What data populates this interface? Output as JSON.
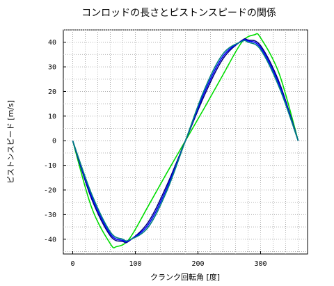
{
  "chart_data": {
    "type": "line",
    "title": "コンロッドの長さとピストンスピードの関係",
    "xlabel": "クランク回転角 [度]",
    "ylabel": "ピストンスピード [m/s]",
    "xlim": [
      -15,
      375
    ],
    "ylim": [
      -46,
      45
    ],
    "x_ticks": [
      0,
      100,
      200,
      300
    ],
    "y_ticks": [
      -40,
      -30,
      -20,
      -10,
      0,
      10,
      20,
      30,
      40
    ],
    "grid": true,
    "grid_style": "dotted",
    "legend": false,
    "series": [
      {
        "color": "#00dd00",
        "x": [
          0,
          30,
          60,
          70,
          90,
          120,
          150,
          180,
          210,
          240,
          270,
          290,
          300,
          330,
          360
        ],
        "y": [
          0,
          -27.0,
          -41.8,
          -43.0,
          -40.0,
          -26.8,
          -13.2,
          0,
          13.2,
          26.8,
          40.0,
          43.0,
          41.8,
          27.0,
          0
        ]
      },
      {
        "color": "#000080",
        "x": [
          0,
          30,
          60,
          80,
          90,
          120,
          150,
          180,
          210,
          240,
          270,
          280,
          300,
          330,
          360
        ],
        "y": [
          0,
          -23.5,
          -38.6,
          -40.9,
          -40.7,
          -33.3,
          -18.3,
          0,
          18.3,
          33.3,
          40.7,
          40.9,
          38.6,
          23.5,
          0
        ]
      },
      {
        "color": "#0000ff",
        "x": [
          0,
          30,
          60,
          80,
          90,
          120,
          150,
          180,
          210,
          240,
          270,
          280,
          300,
          330,
          360
        ],
        "y": [
          0,
          -22.5,
          -37.8,
          -40.5,
          -40.5,
          -34.3,
          -19.5,
          0,
          19.5,
          34.3,
          40.5,
          40.5,
          37.8,
          22.5,
          0
        ]
      },
      {
        "color": "#008080",
        "x": [
          0,
          30,
          60,
          80,
          90,
          120,
          150,
          180,
          210,
          240,
          270,
          280,
          300,
          330,
          360
        ],
        "y": [
          0,
          -21.5,
          -37.0,
          -40.0,
          -40.3,
          -35.3,
          -20.6,
          0,
          20.6,
          35.3,
          40.3,
          40.0,
          37.0,
          21.5,
          0
        ]
      }
    ]
  }
}
